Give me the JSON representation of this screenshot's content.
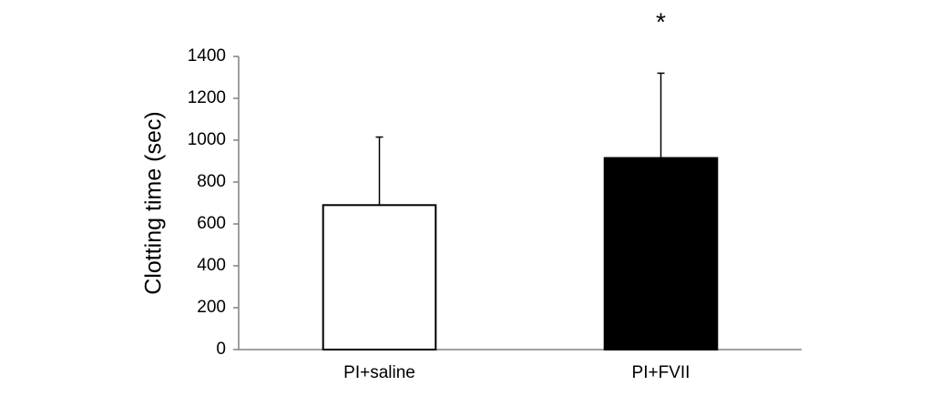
{
  "chart_data": {
    "type": "bar",
    "y_label": "Clotting time (sec)",
    "categories": [
      "PI+saline",
      "PI+FVII"
    ],
    "values": [
      690,
      915
    ],
    "errors": [
      325,
      405
    ],
    "colors": [
      "#ffffff",
      "#000000"
    ],
    "edge_color": "#000000",
    "annotations": [
      {
        "text": "*",
        "category": 1
      }
    ],
    "ylim": [
      0,
      1400
    ],
    "yticks": [
      0,
      200,
      400,
      600,
      800,
      1000,
      1200,
      1400
    ],
    "grid": false
  }
}
